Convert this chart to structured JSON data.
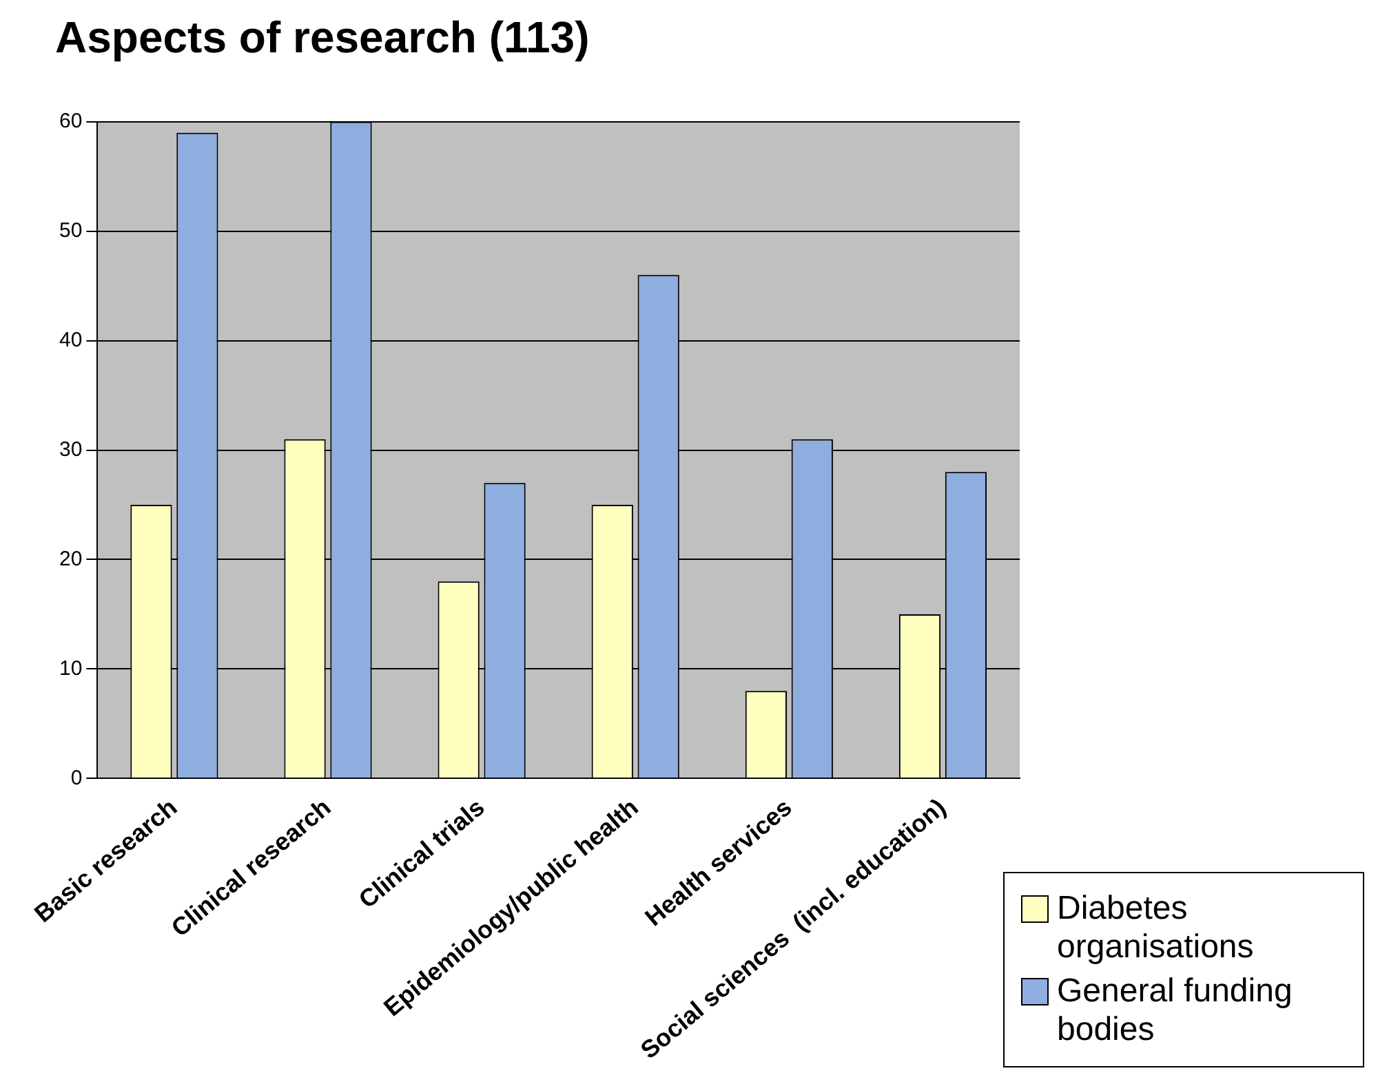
{
  "chart_data": {
    "type": "bar",
    "title": "Aspects of research (113)",
    "categories": [
      "Basic research",
      "Clinical research",
      "Clinical trials",
      "Epidemiology/public health",
      "Health services",
      "Social sciences  (incl. education)"
    ],
    "series": [
      {
        "name": "Diabetes organisations",
        "color": "#ffffc0",
        "values": [
          25,
          31,
          18,
          25,
          8,
          15
        ]
      },
      {
        "name": "General funding bodies",
        "color": "#8eaee0",
        "values": [
          59,
          60,
          27,
          46,
          31,
          28
        ]
      }
    ],
    "ylim": [
      0,
      60
    ],
    "yticks": [
      0,
      10,
      20,
      30,
      40,
      50,
      60
    ],
    "grid": "y",
    "legend": "bottom right"
  }
}
